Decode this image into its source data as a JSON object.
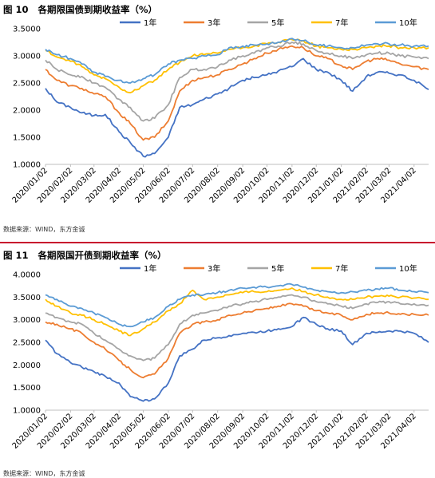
{
  "figures": [
    {
      "title": "图 10   各期限国债到期收益率（%）",
      "source": "数据来源：WIND，东方金诚"
    },
    {
      "title": "图 11   各期限国开债到期收益率（%）",
      "source": "数据来源：WIND，东方金诚"
    }
  ],
  "chart_data": [
    {
      "type": "line",
      "title": "各期限国债到期收益率（%）",
      "ylim": [
        1.0,
        3.5
      ],
      "yticks": [
        "1.0000",
        "1.5000",
        "2.0000",
        "2.5000",
        "3.0000",
        "3.5000"
      ],
      "grid": false,
      "legend_position": "top",
      "xticks": [
        "2020/01/02",
        "2020/02/02",
        "2020/03/02",
        "2020/04/02",
        "2020/05/02",
        "2020/06/02",
        "2020/07/02",
        "2020/08/02",
        "2020/09/02",
        "2020/10/02",
        "2020/11/02",
        "2020/12/02",
        "2021/01/02",
        "2021/02/02",
        "2021/03/02",
        "2021/04/02"
      ],
      "x": [
        "2020/01/02",
        "2020/01/16",
        "2020/02/02",
        "2020/02/16",
        "2020/03/02",
        "2020/03/16",
        "2020/04/02",
        "2020/04/16",
        "2020/05/02",
        "2020/05/16",
        "2020/06/02",
        "2020/06/16",
        "2020/07/02",
        "2020/07/16",
        "2020/08/02",
        "2020/08/16",
        "2020/09/02",
        "2020/09/16",
        "2020/10/02",
        "2020/10/16",
        "2020/11/02",
        "2020/11/16",
        "2020/12/02",
        "2020/12/16",
        "2021/01/02",
        "2021/01/16",
        "2021/02/02",
        "2021/02/16",
        "2021/03/02",
        "2021/03/16",
        "2021/04/02",
        "2021/04/20"
      ],
      "series": [
        {
          "name": "1年",
          "color": "#4472c4",
          "values": [
            2.4,
            2.15,
            2.05,
            1.95,
            1.9,
            1.92,
            1.6,
            1.4,
            1.15,
            1.2,
            1.5,
            2.05,
            2.1,
            2.2,
            2.3,
            2.4,
            2.55,
            2.6,
            2.65,
            2.72,
            2.8,
            2.95,
            2.75,
            2.7,
            2.55,
            2.35,
            2.62,
            2.7,
            2.68,
            2.65,
            2.55,
            2.38
          ]
        },
        {
          "name": "3年",
          "color": "#ed7d31",
          "values": [
            2.75,
            2.55,
            2.45,
            2.4,
            2.3,
            2.25,
            1.95,
            1.75,
            1.45,
            1.5,
            1.8,
            2.35,
            2.55,
            2.6,
            2.65,
            2.75,
            2.85,
            2.95,
            3.05,
            3.12,
            3.18,
            3.15,
            3.0,
            2.95,
            2.82,
            2.75,
            2.9,
            2.95,
            2.92,
            2.85,
            2.8,
            2.75
          ]
        },
        {
          "name": "5年",
          "color": "#a5a5a5",
          "values": [
            2.92,
            2.75,
            2.65,
            2.62,
            2.5,
            2.42,
            2.2,
            2.05,
            1.8,
            1.85,
            2.1,
            2.6,
            2.75,
            2.75,
            2.8,
            2.92,
            3.0,
            3.05,
            3.15,
            3.18,
            3.25,
            3.22,
            3.1,
            3.05,
            3.0,
            2.95,
            3.02,
            3.05,
            3.05,
            3.0,
            2.98,
            2.95
          ]
        },
        {
          "name": "7年",
          "color": "#ffc000",
          "values": [
            3.1,
            2.98,
            2.9,
            2.8,
            2.65,
            2.58,
            2.42,
            2.32,
            2.45,
            2.55,
            2.75,
            2.88,
            3.0,
            3.02,
            3.05,
            3.12,
            3.15,
            3.18,
            3.22,
            3.25,
            3.3,
            3.28,
            3.18,
            3.15,
            3.12,
            3.12,
            3.15,
            3.18,
            3.18,
            3.15,
            3.15,
            3.15
          ]
        },
        {
          "name": "10年",
          "color": "#5b9bd5",
          "values": [
            3.12,
            3.02,
            2.95,
            2.85,
            2.7,
            2.62,
            2.55,
            2.5,
            2.58,
            2.65,
            2.85,
            2.92,
            2.95,
            3.0,
            3.02,
            3.15,
            3.18,
            3.2,
            3.22,
            3.25,
            3.32,
            3.28,
            3.2,
            3.18,
            3.15,
            3.15,
            3.2,
            3.22,
            3.22,
            3.2,
            3.18,
            3.18
          ]
        }
      ]
    },
    {
      "type": "line",
      "title": "各期限国开债到期收益率（%）",
      "ylim": [
        1.0,
        4.0
      ],
      "yticks": [
        "1.0000",
        "1.5000",
        "2.0000",
        "2.5000",
        "3.0000",
        "3.5000",
        "4.0000"
      ],
      "grid": false,
      "legend_position": "top",
      "xticks": [
        "2020/01/02",
        "2020/02/02",
        "2020/03/02",
        "2020/04/02",
        "2020/05/02",
        "2020/06/02",
        "2020/07/02",
        "2020/08/02",
        "2020/09/02",
        "2020/10/02",
        "2020/11/02",
        "2020/12/02",
        "2021/01/02",
        "2021/02/02",
        "2021/03/02",
        "2021/04/02"
      ],
      "x": [
        "2020/01/02",
        "2020/01/16",
        "2020/02/02",
        "2020/02/16",
        "2020/03/02",
        "2020/03/16",
        "2020/04/02",
        "2020/04/16",
        "2020/05/02",
        "2020/05/16",
        "2020/06/02",
        "2020/06/16",
        "2020/07/02",
        "2020/07/16",
        "2020/08/02",
        "2020/08/16",
        "2020/09/02",
        "2020/09/16",
        "2020/10/02",
        "2020/10/16",
        "2020/11/02",
        "2020/11/16",
        "2020/12/02",
        "2020/12/16",
        "2021/01/02",
        "2021/01/16",
        "2021/02/02",
        "2021/02/16",
        "2021/03/02",
        "2021/03/16",
        "2021/04/02",
        "2021/04/20"
      ],
      "series": [
        {
          "name": "1年",
          "color": "#4472c4",
          "values": [
            2.55,
            2.25,
            2.05,
            1.95,
            1.85,
            1.75,
            1.6,
            1.3,
            1.2,
            1.25,
            1.6,
            2.2,
            2.35,
            2.55,
            2.6,
            2.65,
            2.7,
            2.72,
            2.75,
            2.8,
            2.85,
            3.05,
            2.9,
            2.8,
            2.75,
            2.45,
            2.7,
            2.72,
            2.75,
            2.75,
            2.7,
            2.5
          ]
        },
        {
          "name": "3年",
          "color": "#ed7d31",
          "values": [
            2.95,
            2.9,
            2.8,
            2.7,
            2.5,
            2.35,
            2.1,
            1.9,
            1.72,
            1.8,
            2.15,
            2.7,
            2.9,
            2.95,
            3.0,
            3.1,
            3.15,
            3.2,
            3.25,
            3.3,
            3.35,
            3.3,
            3.2,
            3.15,
            3.1,
            3.0,
            3.12,
            3.15,
            3.15,
            3.12,
            3.12,
            3.1
          ]
        },
        {
          "name": "5年",
          "color": "#a5a5a5",
          "values": [
            3.15,
            3.05,
            2.95,
            2.9,
            2.7,
            2.55,
            2.35,
            2.2,
            2.1,
            2.15,
            2.45,
            2.9,
            3.1,
            3.15,
            3.2,
            3.3,
            3.35,
            3.4,
            3.45,
            3.5,
            3.55,
            3.5,
            3.4,
            3.35,
            3.3,
            3.25,
            3.35,
            3.38,
            3.4,
            3.35,
            3.35,
            3.32
          ]
        },
        {
          "name": "7年",
          "color": "#ffc000",
          "values": [
            3.45,
            3.3,
            3.15,
            3.1,
            3.0,
            2.9,
            2.75,
            2.65,
            2.8,
            2.95,
            3.2,
            3.35,
            3.65,
            3.45,
            3.5,
            3.55,
            3.6,
            3.62,
            3.62,
            3.65,
            3.7,
            3.62,
            3.55,
            3.5,
            3.45,
            3.45,
            3.5,
            3.52,
            3.52,
            3.5,
            3.48,
            3.45
          ]
        },
        {
          "name": "10年",
          "color": "#5b9bd5",
          "values": [
            3.55,
            3.45,
            3.3,
            3.25,
            3.15,
            3.05,
            2.9,
            2.85,
            2.95,
            3.05,
            3.3,
            3.45,
            3.55,
            3.55,
            3.6,
            3.65,
            3.7,
            3.72,
            3.72,
            3.75,
            3.78,
            3.72,
            3.65,
            3.62,
            3.6,
            3.62,
            3.65,
            3.68,
            3.7,
            3.65,
            3.62,
            3.6
          ]
        }
      ]
    }
  ]
}
